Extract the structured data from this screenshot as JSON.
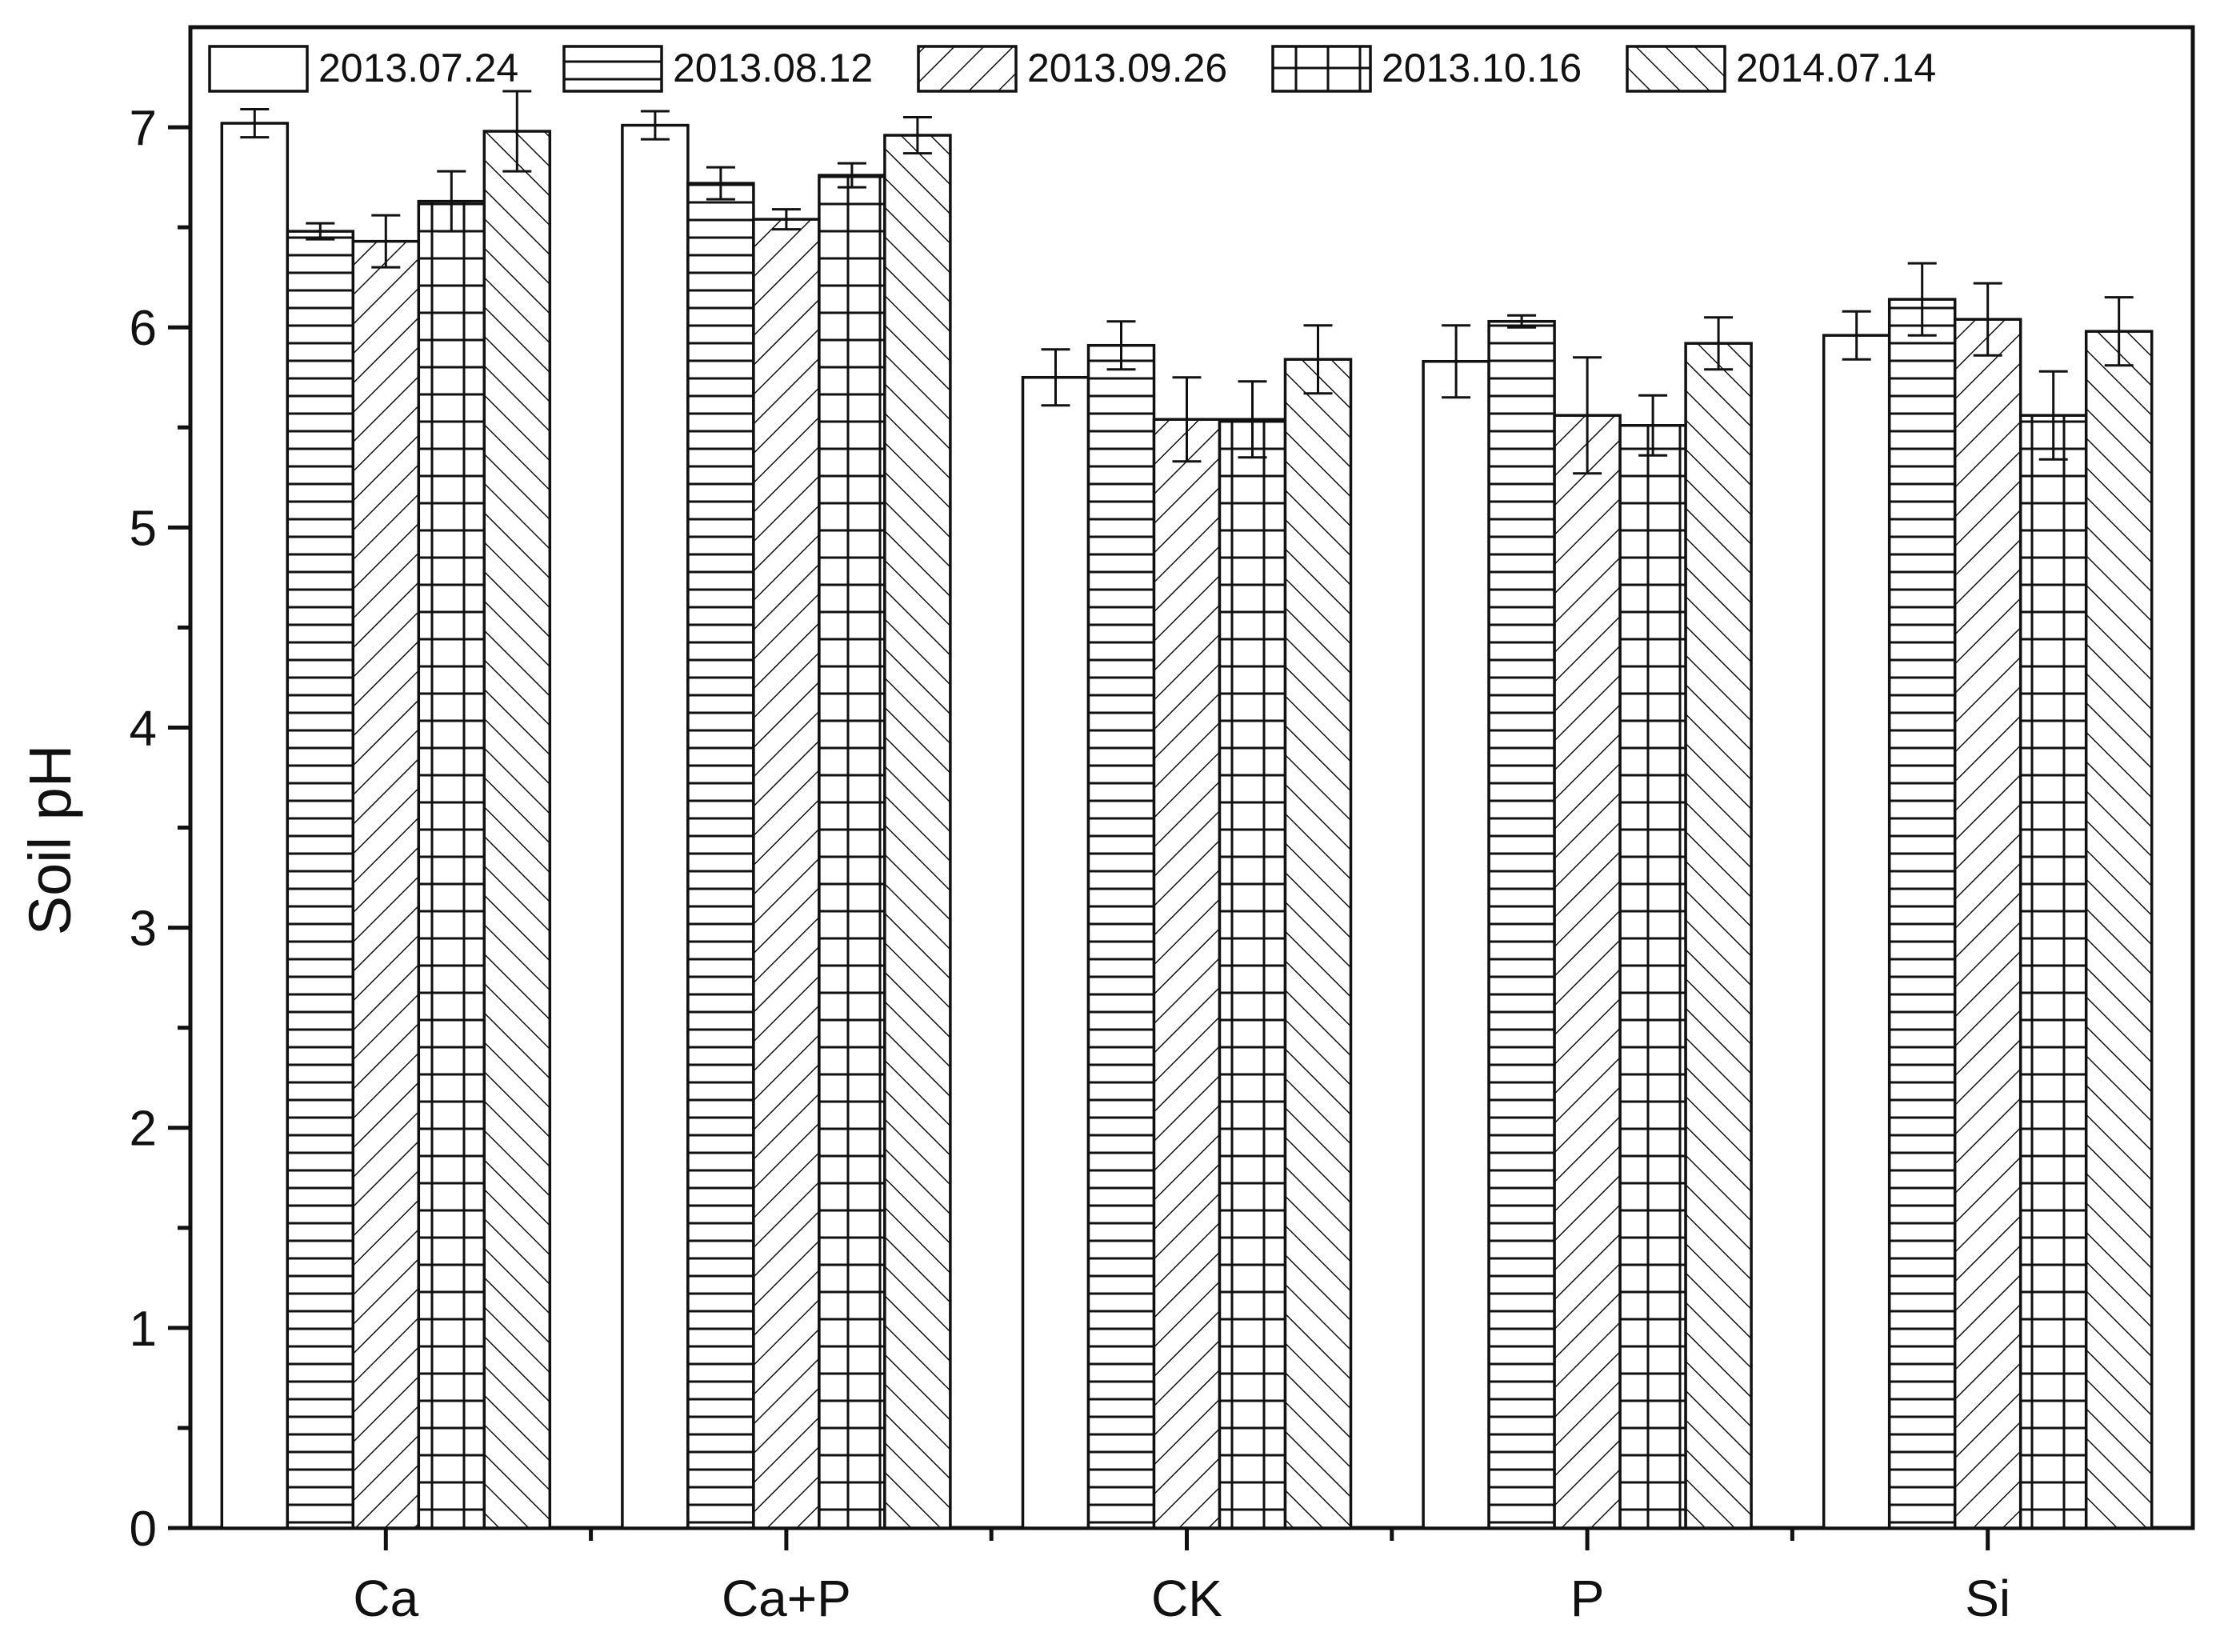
{
  "chart_data": {
    "type": "bar",
    "ylabel": "Soil pH",
    "xlabel": "",
    "ylim": [
      0,
      7.5
    ],
    "yticks": [
      0,
      1,
      2,
      3,
      4,
      5,
      6,
      7
    ],
    "categories": [
      "Ca",
      "Ca+P",
      "CK",
      "P",
      "Si"
    ],
    "legend_position": "top, inside plot",
    "grid": false,
    "error_bars": true,
    "series": [
      {
        "name": "2013.07.24",
        "pattern": "blank",
        "values": [
          7.02,
          7.01,
          5.75,
          5.83,
          5.96
        ],
        "errors": [
          0.07,
          0.07,
          0.14,
          0.18,
          0.12
        ]
      },
      {
        "name": "2013.08.12",
        "pattern": "horizontal-lines",
        "values": [
          6.48,
          6.72,
          5.91,
          6.03,
          6.14
        ],
        "errors": [
          0.04,
          0.08,
          0.12,
          0.03,
          0.18
        ]
      },
      {
        "name": "2013.09.26",
        "pattern": "diagonal-lines",
        "values": [
          6.43,
          6.54,
          5.54,
          5.56,
          6.04
        ],
        "errors": [
          0.13,
          0.05,
          0.21,
          0.29,
          0.18
        ]
      },
      {
        "name": "2013.10.16",
        "pattern": "grid",
        "values": [
          6.63,
          6.76,
          5.54,
          5.51,
          5.56
        ],
        "errors": [
          0.15,
          0.06,
          0.19,
          0.15,
          0.22
        ]
      },
      {
        "name": "2014.07.14",
        "pattern": "back-diagonal-lines",
        "values": [
          6.98,
          6.96,
          5.84,
          5.92,
          5.98
        ],
        "errors": [
          0.2,
          0.09,
          0.17,
          0.13,
          0.17
        ]
      }
    ]
  },
  "colors": {
    "ink": "#111111",
    "background": "#ffffff",
    "bar_fill": "#ffffff"
  }
}
